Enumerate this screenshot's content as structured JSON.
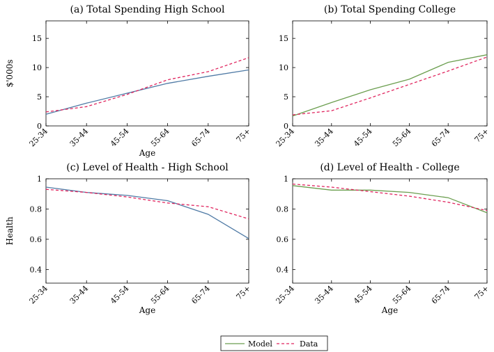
{
  "figure": {
    "legend": [
      {
        "name": "Model"
      },
      {
        "name": "Data"
      }
    ]
  },
  "chart_data": [
    {
      "type": "line",
      "title": "(a) Total Spending High School",
      "xlabel": "Age",
      "ylabel": "$'000s",
      "categories": [
        "25-34",
        "35-44",
        "45-54",
        "55-64",
        "65-74",
        "75+"
      ],
      "ylim": [
        0,
        18
      ],
      "yticks": [
        0,
        5,
        10,
        15
      ],
      "ytick_labels": [
        "0",
        "5",
        "10",
        "15"
      ],
      "series": [
        {
          "name": "Model",
          "color": "#4f7aa5",
          "dash": "solid",
          "values": [
            2.0,
            3.9,
            5.6,
            7.3,
            8.5,
            9.6
          ]
        },
        {
          "name": "Data",
          "color": "#e0245e",
          "dash": "dashed",
          "values": [
            2.4,
            3.3,
            5.4,
            7.9,
            9.3,
            11.7
          ]
        }
      ]
    },
    {
      "type": "line",
      "title": "(b) Total Spending College",
      "xlabel": "",
      "ylabel": "",
      "categories": [
        "25-34",
        "35-44",
        "45-54",
        "55-64",
        "65-74",
        "75+"
      ],
      "ylim": [
        0,
        18
      ],
      "yticks": [
        0,
        5,
        10,
        15
      ],
      "ytick_labels": [
        "0",
        "5",
        "10",
        "15"
      ],
      "series": [
        {
          "name": "Model",
          "color": "#6b9e4f",
          "dash": "solid",
          "values": [
            1.7,
            4.0,
            6.2,
            8.0,
            10.9,
            12.2
          ]
        },
        {
          "name": "Data",
          "color": "#e0245e",
          "dash": "dashed",
          "values": [
            1.9,
            2.6,
            4.8,
            7.1,
            9.4,
            11.8
          ]
        }
      ]
    },
    {
      "type": "line",
      "title": "(c) Level of Health - High School",
      "xlabel": "Age",
      "ylabel": "Health",
      "categories": [
        "25-34",
        "35-44",
        "45-54",
        "55-64",
        "65-74",
        "75+"
      ],
      "ylim": [
        0.31,
        1.0
      ],
      "yticks": [
        0.4,
        0.6,
        0.8,
        1.0
      ],
      "ytick_labels": [
        "0.4",
        "0.6",
        "0.8",
        "1"
      ],
      "series": [
        {
          "name": "Model",
          "color": "#4f7aa5",
          "dash": "solid",
          "values": [
            0.945,
            0.91,
            0.89,
            0.855,
            0.765,
            0.605
          ]
        },
        {
          "name": "Data",
          "color": "#e0245e",
          "dash": "dashed",
          "values": [
            0.93,
            0.91,
            0.88,
            0.84,
            0.815,
            0.735
          ]
        }
      ]
    },
    {
      "type": "line",
      "title": "(d) Level of Health - College",
      "xlabel": "Age",
      "ylabel": "",
      "categories": [
        "25-34",
        "35-44",
        "45-54",
        "55-64",
        "65-74",
        "75+"
      ],
      "ylim": [
        0.31,
        1.0
      ],
      "yticks": [
        0.4,
        0.6,
        0.8,
        1.0
      ],
      "ytick_labels": [
        "0.4",
        "0.6",
        "0.8",
        "1"
      ],
      "series": [
        {
          "name": "Model",
          "color": "#6b9e4f",
          "dash": "solid",
          "values": [
            0.955,
            0.925,
            0.925,
            0.91,
            0.875,
            0.775
          ]
        },
        {
          "name": "Data",
          "color": "#e0245e",
          "dash": "dashed",
          "values": [
            0.965,
            0.945,
            0.915,
            0.885,
            0.845,
            0.79
          ]
        }
      ]
    }
  ]
}
